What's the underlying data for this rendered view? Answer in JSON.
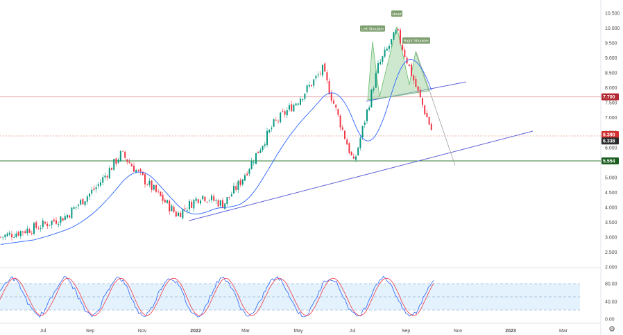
{
  "chart_data": {
    "type": "candlestick",
    "title": "",
    "x_labels": [
      "Jul",
      "Sep",
      "Nov",
      "2022",
      "Mar",
      "May",
      "Jul",
      "Sep",
      "Nov",
      "2023",
      "Mar"
    ],
    "y_ticks": [
      "10.500",
      "10.000",
      "9.500",
      "9.000",
      "8.500",
      "8.000",
      "7.500",
      "7.000",
      "6.500",
      "6.000",
      "5.500",
      "5.000",
      "4.500",
      "4.000",
      "3.500",
      "3.000",
      "2.500",
      "2.000"
    ],
    "ylim": [
      2.0,
      10.5
    ],
    "ohlc_sample": [
      {
        "date": "2021-06",
        "open": 2.85,
        "high": 3.05,
        "low": 2.8,
        "close": 3.0
      },
      {
        "date": "2021-07",
        "open": 3.1,
        "high": 3.4,
        "low": 3.05,
        "close": 3.35
      },
      {
        "date": "2021-08",
        "open": 3.65,
        "high": 3.8,
        "low": 3.55,
        "close": 3.7
      },
      {
        "date": "2021-09",
        "open": 4.1,
        "high": 4.8,
        "low": 3.95,
        "close": 4.7
      },
      {
        "date": "2021-10",
        "open": 5.5,
        "high": 6.4,
        "low": 5.1,
        "close": 5.8
      },
      {
        "date": "2021-11",
        "open": 5.2,
        "high": 5.55,
        "low": 4.7,
        "close": 5.0
      },
      {
        "date": "2021-12",
        "open": 4.4,
        "high": 4.5,
        "low": 3.6,
        "close": 3.75
      },
      {
        "date": "2022-01",
        "open": 4.2,
        "high": 4.6,
        "low": 3.9,
        "close": 4.4
      },
      {
        "date": "2022-02",
        "open": 5.4,
        "high": 5.6,
        "low": 3.95,
        "close": 4.1
      },
      {
        "date": "2022-03",
        "open": 4.6,
        "high": 4.95,
        "low": 4.45,
        "close": 4.8
      },
      {
        "date": "2022-04",
        "open": 5.5,
        "high": 6.9,
        "low": 5.4,
        "close": 6.8
      },
      {
        "date": "2022-05",
        "open": 8.2,
        "high": 9.0,
        "low": 7.2,
        "close": 7.6
      },
      {
        "date": "2022-06",
        "open": 8.9,
        "high": 9.6,
        "low": 8.4,
        "close": 8.6
      },
      {
        "date": "2022-07",
        "open": 6.0,
        "high": 6.1,
        "low": 5.3,
        "close": 5.45
      },
      {
        "date": "2022-08",
        "open": 9.3,
        "high": 9.55,
        "low": 8.4,
        "close": 8.7
      },
      {
        "date": "2022-09",
        "open": 9.6,
        "high": 10.05,
        "low": 9.2,
        "close": 9.9
      },
      {
        "date": "2022-10",
        "open": 8.2,
        "high": 9.2,
        "low": 7.8,
        "close": 8.0
      },
      {
        "date": "2022-11",
        "open": 6.6,
        "high": 6.8,
        "low": 6.3,
        "close": 6.39
      }
    ],
    "last_price": "6.390",
    "price_tags": [
      {
        "label": "7.700",
        "value": 7.7,
        "color": "#b22833"
      },
      {
        "label": "6.390",
        "value": 6.39,
        "color": "#d32f2f"
      },
      {
        "label": "6.338",
        "value": 6.338,
        "color": "#2b2b2b"
      },
      {
        "label": "5.554",
        "value": 5.554,
        "color": "#1b5e20"
      }
    ],
    "horizontal_lines": [
      {
        "value": 7.7,
        "color": "#e6a7ae"
      },
      {
        "value": 6.39,
        "color": "#e3b3a0"
      },
      {
        "value": 5.554,
        "color": "#2e7d32"
      }
    ],
    "annotations": [
      "Left Shoulder",
      "Head",
      "Right Shoulder"
    ],
    "pattern": "head-and-shoulders",
    "oscillator": {
      "type": "stochastic",
      "y_ticks": [
        "80.00",
        "40.00",
        "0.00"
      ],
      "ylim": [
        0,
        100
      ],
      "band": [
        20,
        80
      ],
      "series": [
        {
          "color": "#2962ff"
        },
        {
          "color": "#f23645"
        }
      ]
    },
    "colors": {
      "up": "#089981",
      "down": "#f23645",
      "ma": "#2962ff",
      "trendline": "#5c5fd6"
    },
    "grid": false,
    "legend": "none"
  },
  "settings_icon": "gear-icon"
}
